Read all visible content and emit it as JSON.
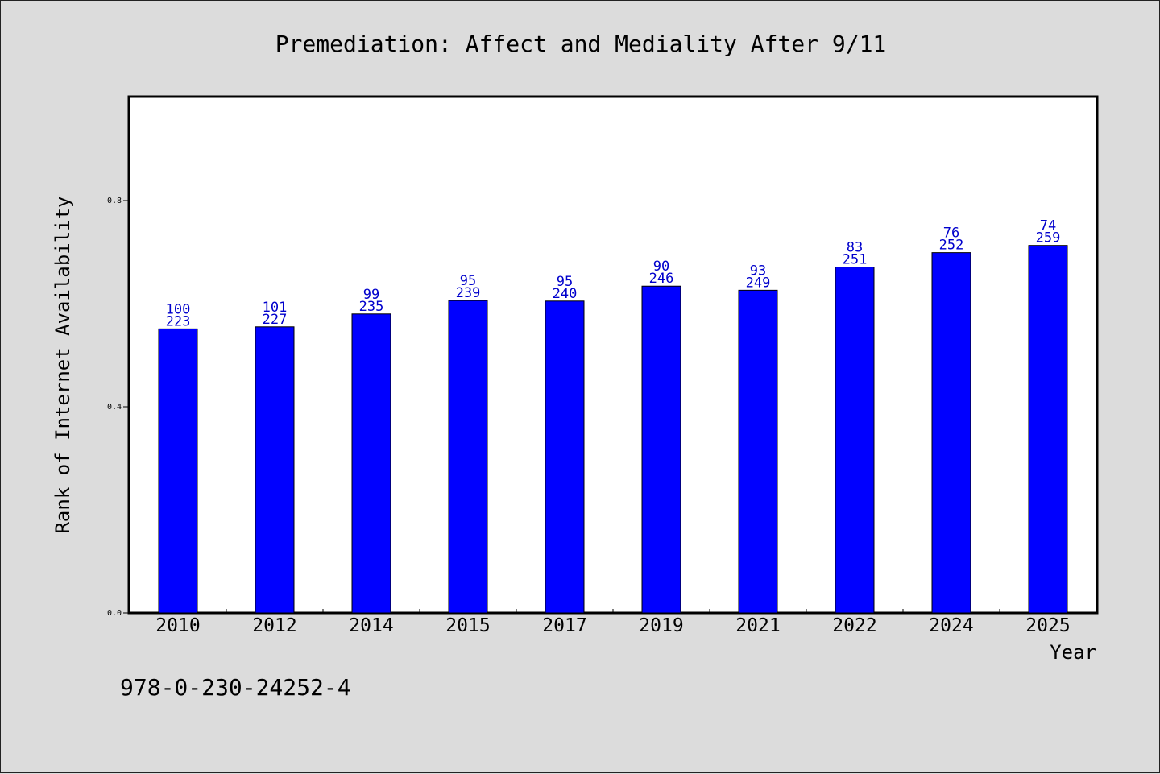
{
  "chart_data": {
    "type": "bar",
    "title": "Premediation: Affect and Mediality After 9/11",
    "xlabel": "Year",
    "ylabel": "Rank of Internet Availability",
    "categories": [
      "2010",
      "2012",
      "2014",
      "2015",
      "2017",
      "2019",
      "2021",
      "2022",
      "2024",
      "2025"
    ],
    "values": [
      0.551,
      0.555,
      0.58,
      0.606,
      0.605,
      0.634,
      0.626,
      0.671,
      0.699,
      0.713
    ],
    "annotations_top": [
      "100",
      "101",
      "99",
      "95",
      "95",
      "90",
      "93",
      "83",
      "76",
      "74"
    ],
    "annotations_bottom": [
      "223",
      "227",
      "235",
      "239",
      "240",
      "246",
      "249",
      "251",
      "252",
      "259"
    ],
    "ylim": [
      0,
      1
    ],
    "yticks": [
      "0.0",
      "0.4",
      "0.8"
    ],
    "bar_color": "#0000ff",
    "label_color": "#0000cc",
    "grid": false,
    "legend": "none"
  },
  "footer": {
    "isbn": "978-0-230-24252-4"
  }
}
